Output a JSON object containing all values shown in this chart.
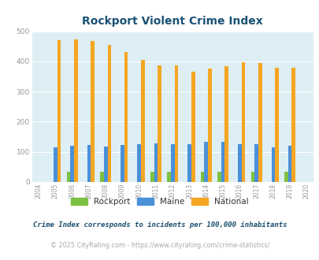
{
  "title": "Rockport Violent Crime Index",
  "years": [
    2004,
    2005,
    2006,
    2007,
    2008,
    2009,
    2010,
    2011,
    2012,
    2013,
    2014,
    2015,
    2016,
    2017,
    2018,
    2019,
    2020
  ],
  "rockport": [
    0,
    0,
    35,
    0,
    35,
    0,
    0,
    35,
    35,
    0,
    35,
    35,
    0,
    35,
    0,
    35,
    0
  ],
  "maine": [
    0,
    115,
    120,
    122,
    118,
    122,
    126,
    127,
    126,
    126,
    132,
    132,
    125,
    126,
    114,
    120,
    0
  ],
  "national": [
    0,
    469,
    473,
    467,
    455,
    432,
    405,
    387,
    387,
    367,
    376,
    383,
    398,
    394,
    380,
    379,
    0
  ],
  "rockport_color": "#7dc142",
  "maine_color": "#4a90d9",
  "national_color": "#f5a623",
  "bg_color": "#ddeef4",
  "title_color": "#1a5276",
  "subtitle": "Crime Index corresponds to incidents per 100,000 inhabitants",
  "footer": "© 2025 CityRating.com - https://www.cityrating.com/crime-statistics/",
  "ylim": [
    0,
    500
  ],
  "yticks": [
    0,
    100,
    200,
    300,
    400,
    500
  ],
  "bar_width": 0.22
}
